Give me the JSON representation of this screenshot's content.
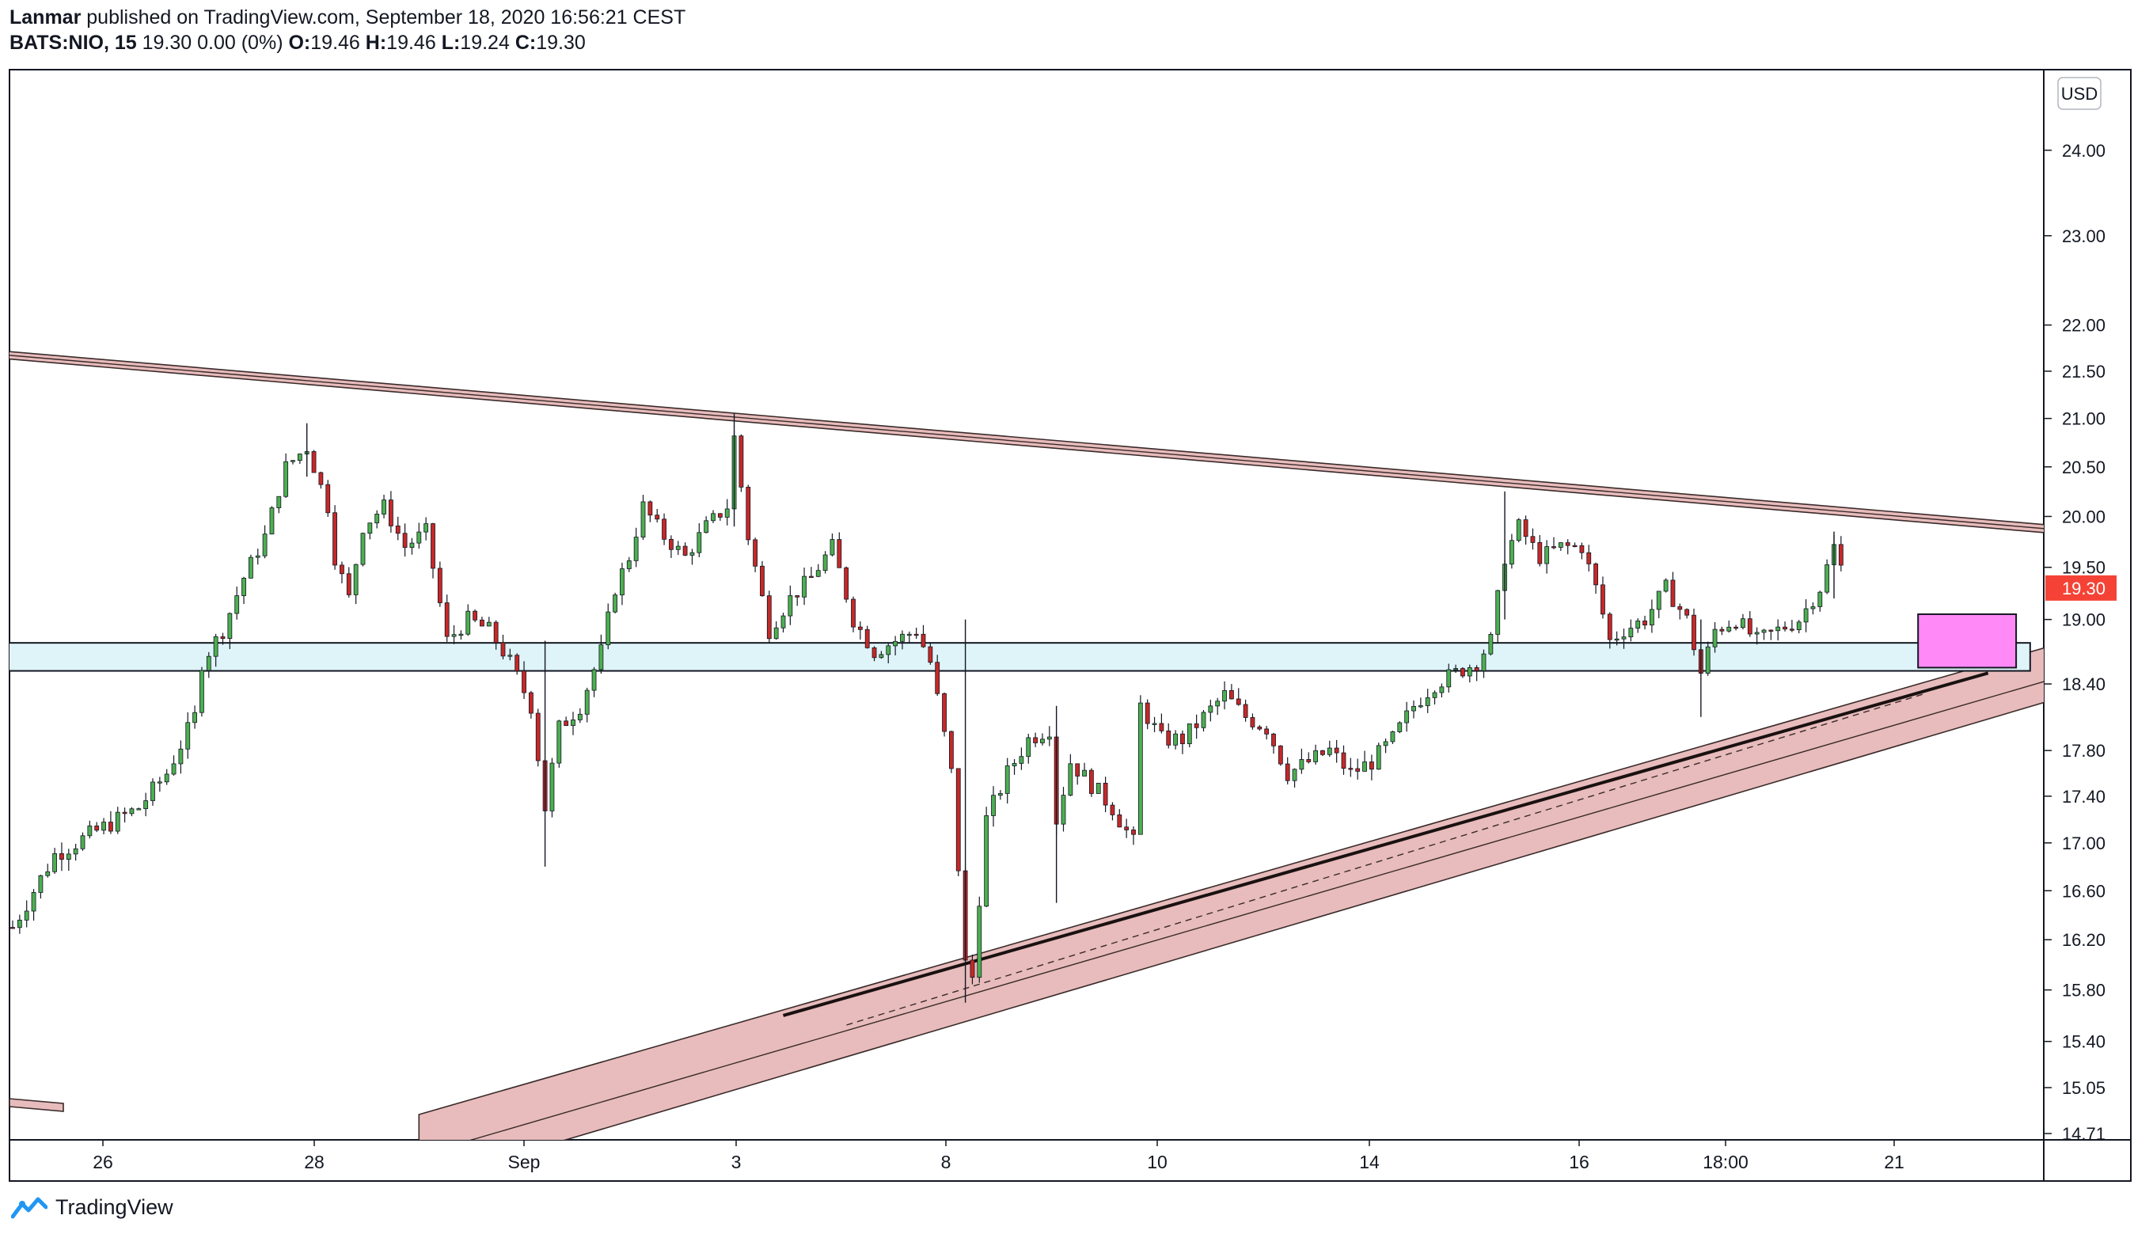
{
  "header": {
    "author": "Lanmar",
    "published": "published on TradingView.com, September 18, 2020 16:56:21 CEST",
    "symbol": "BATS:NIO, 15",
    "quote": "19.30 0.00 (0%)",
    "o_label": "O:",
    "o_val": "19.46",
    "h_label": "H:",
    "h_val": "19.46",
    "l_label": "L:",
    "l_val": "19.24",
    "c_label": "C:",
    "c_val": "19.30"
  },
  "footer": {
    "brand": "TradingView"
  },
  "colors": {
    "up": "#26a69a",
    "down": "#ef5350",
    "candle_up_fill": "#4caf50",
    "candle_down_fill": "#c62828",
    "trend_band": "#e8bcbc",
    "support_box": "#dff4f8",
    "target_box": "#ff8af7",
    "price_badge": "#f44336"
  },
  "chart_data": {
    "type": "candlestick",
    "currency": "USD",
    "y_scale": "log",
    "ylim": [
      14.71,
      25.2
    ],
    "y_ticks": [
      "24.00",
      "23.00",
      "22.00",
      "21.50",
      "21.00",
      "20.50",
      "20.00",
      "19.50",
      "19.00",
      "18.40",
      "17.80",
      "17.40",
      "17.00",
      "16.60",
      "16.20",
      "15.80",
      "15.40",
      "15.05",
      "14.71"
    ],
    "x_ticks": [
      "26",
      "28",
      "Sep",
      "3",
      "8",
      "10",
      "14",
      "16",
      "18:00",
      "21"
    ],
    "last_price": "19.30",
    "price_path": [
      [
        0,
        16.3
      ],
      [
        6,
        16.9
      ],
      [
        12,
        17.1
      ],
      [
        18,
        17.3
      ],
      [
        22,
        17.6
      ],
      [
        26,
        18.1
      ],
      [
        27,
        18.6
      ],
      [
        30,
        18.9
      ],
      [
        33,
        19.4
      ],
      [
        36,
        19.8
      ],
      [
        39,
        20.5
      ],
      [
        42,
        20.7
      ],
      [
        45,
        20.1
      ],
      [
        46,
        19.6
      ],
      [
        48,
        19.2
      ],
      [
        50,
        19.9
      ],
      [
        53,
        20.1
      ],
      [
        56,
        19.7
      ],
      [
        59,
        19.85
      ],
      [
        62,
        18.8
      ],
      [
        65,
        19.0
      ],
      [
        68,
        18.9
      ],
      [
        71,
        18.6
      ],
      [
        74,
        18.2
      ],
      [
        76,
        17.3
      ],
      [
        78,
        18.0
      ],
      [
        81,
        18.2
      ],
      [
        84,
        18.7
      ],
      [
        86,
        19.3
      ],
      [
        88,
        19.6
      ],
      [
        90,
        20.1
      ],
      [
        93,
        19.8
      ],
      [
        96,
        19.6
      ],
      [
        99,
        19.9
      ],
      [
        102,
        20.1
      ],
      [
        103,
        20.8
      ],
      [
        105,
        19.8
      ],
      [
        108,
        18.9
      ],
      [
        111,
        19.2
      ],
      [
        114,
        19.4
      ],
      [
        117,
        19.7
      ],
      [
        120,
        19.0
      ],
      [
        123,
        18.7
      ],
      [
        126,
        18.8
      ],
      [
        129,
        18.9
      ],
      [
        131,
        18.6
      ],
      [
        134,
        17.6
      ],
      [
        136,
        16.0
      ],
      [
        137,
        15.9
      ],
      [
        139,
        17.2
      ],
      [
        142,
        17.6
      ],
      [
        145,
        17.9
      ],
      [
        148,
        18.0
      ],
      [
        149,
        17.2
      ],
      [
        151,
        17.7
      ],
      [
        154,
        17.5
      ],
      [
        157,
        17.3
      ],
      [
        160,
        17.0
      ],
      [
        161,
        18.2
      ],
      [
        164,
        17.9
      ],
      [
        167,
        17.9
      ],
      [
        170,
        18.1
      ],
      [
        173,
        18.3
      ],
      [
        176,
        18.1
      ],
      [
        179,
        18.0
      ],
      [
        182,
        17.6
      ],
      [
        185,
        17.7
      ],
      [
        188,
        17.8
      ],
      [
        191,
        17.6
      ],
      [
        194,
        17.7
      ],
      [
        197,
        17.9
      ],
      [
        200,
        18.2
      ],
      [
        203,
        18.4
      ],
      [
        206,
        18.5
      ],
      [
        209,
        18.6
      ],
      [
        211,
        18.8
      ],
      [
        213,
        19.6
      ],
      [
        215,
        19.9
      ],
      [
        218,
        19.6
      ],
      [
        221,
        19.7
      ],
      [
        224,
        19.7
      ],
      [
        226,
        19.3
      ],
      [
        228,
        18.8
      ],
      [
        230,
        18.9
      ],
      [
        233,
        19.0
      ],
      [
        236,
        19.3
      ],
      [
        239,
        19.0
      ],
      [
        241,
        18.5
      ],
      [
        243,
        18.9
      ],
      [
        246,
        19.0
      ],
      [
        249,
        18.8
      ],
      [
        252,
        18.9
      ],
      [
        255,
        19.0
      ],
      [
        258,
        19.3
      ],
      [
        260,
        19.7
      ],
      [
        262,
        19.3
      ]
    ],
    "drawings": [
      {
        "kind": "trend-band",
        "name": "upper-resistance",
        "from": [
          -5,
          21.7
        ],
        "to": [
          312,
          19.75
        ],
        "width": 0.08
      },
      {
        "kind": "trend-band",
        "name": "lower-support",
        "from": [
          58,
          14.6
        ],
        "to": [
          312,
          18.9
        ],
        "width": 0.5
      },
      {
        "kind": "trend-line",
        "name": "lower-inner-line",
        "from": [
          110,
          15.6
        ],
        "to": [
          282,
          18.5
        ]
      },
      {
        "kind": "zone",
        "name": "support-zone",
        "x0": -5,
        "x1": 288,
        "y0": 18.52,
        "y1": 18.78
      },
      {
        "kind": "zone",
        "name": "target-box",
        "x0": 272,
        "x1": 286,
        "y0": 18.55,
        "y1": 19.05
      }
    ]
  }
}
